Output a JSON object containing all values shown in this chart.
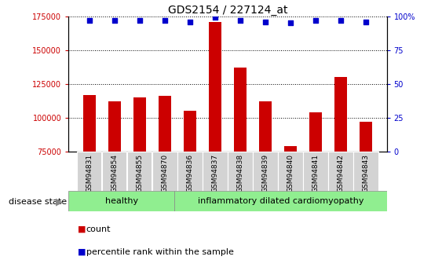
{
  "title": "GDS2154 / 227124_at",
  "categories": [
    "GSM94831",
    "GSM94854",
    "GSM94855",
    "GSM94870",
    "GSM94836",
    "GSM94837",
    "GSM94838",
    "GSM94839",
    "GSM94840",
    "GSM94841",
    "GSM94842",
    "GSM94843"
  ],
  "bar_values": [
    117000,
    112000,
    115000,
    116000,
    105000,
    171000,
    137000,
    112000,
    79000,
    104000,
    130000,
    97000
  ],
  "percentile_values": [
    97,
    97,
    97,
    97,
    96,
    99,
    97,
    96,
    95,
    97,
    97,
    96
  ],
  "ylim_left": [
    75000,
    175000
  ],
  "ylim_right": [
    0,
    100
  ],
  "yticks_left": [
    75000,
    100000,
    125000,
    150000,
    175000
  ],
  "yticks_right": [
    0,
    25,
    50,
    75,
    100
  ],
  "bar_color": "#CC0000",
  "dot_color": "#0000CC",
  "group1_label": "healthy",
  "group2_label": "inflammatory dilated cardiomyopathy",
  "group1_count": 4,
  "group2_count": 8,
  "disease_state_label": "disease state",
  "legend_bar_label": "count",
  "legend_dot_label": "percentile rank within the sample",
  "background_color": "#ffffff",
  "plot_bg_color": "#ffffff",
  "group1_color": "#90EE90",
  "group2_color": "#90EE90",
  "tick_label_bg": "#d3d3d3",
  "right_axis_tick_labels": [
    "0",
    "25",
    "50",
    "75",
    "100%"
  ]
}
